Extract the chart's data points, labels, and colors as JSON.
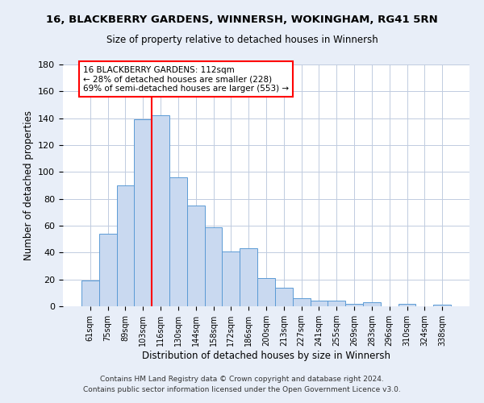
{
  "title": "16, BLACKBERRY GARDENS, WINNERSH, WOKINGHAM, RG41 5RN",
  "subtitle": "Size of property relative to detached houses in Winnersh",
  "xlabel": "Distribution of detached houses by size in Winnersh",
  "ylabel": "Number of detached properties",
  "bar_labels": [
    "61sqm",
    "75sqm",
    "89sqm",
    "103sqm",
    "116sqm",
    "130sqm",
    "144sqm",
    "158sqm",
    "172sqm",
    "186sqm",
    "200sqm",
    "213sqm",
    "227sqm",
    "241sqm",
    "255sqm",
    "269sqm",
    "283sqm",
    "296sqm",
    "310sqm",
    "324sqm",
    "338sqm"
  ],
  "bar_values": [
    19,
    54,
    90,
    139,
    142,
    96,
    75,
    59,
    41,
    43,
    21,
    14,
    6,
    4,
    4,
    2,
    3,
    0,
    2,
    0,
    1
  ],
  "bar_color": "#c9d9f0",
  "bar_edge_color": "#5b9bd5",
  "ylim": [
    0,
    180
  ],
  "yticks": [
    0,
    20,
    40,
    60,
    80,
    100,
    120,
    140,
    160,
    180
  ],
  "vline_x_index": 3.5,
  "vline_color": "red",
  "annotation_text": "16 BLACKBERRY GARDENS: 112sqm\n← 28% of detached houses are smaller (228)\n69% of semi-detached houses are larger (553) →",
  "annotation_box_color": "white",
  "annotation_box_edge_color": "red",
  "footer_line1": "Contains HM Land Registry data © Crown copyright and database right 2024.",
  "footer_line2": "Contains public sector information licensed under the Open Government Licence v3.0.",
  "bg_color": "#e8eef8",
  "plot_bg_color": "#ffffff",
  "grid_color": "#c0cce0"
}
